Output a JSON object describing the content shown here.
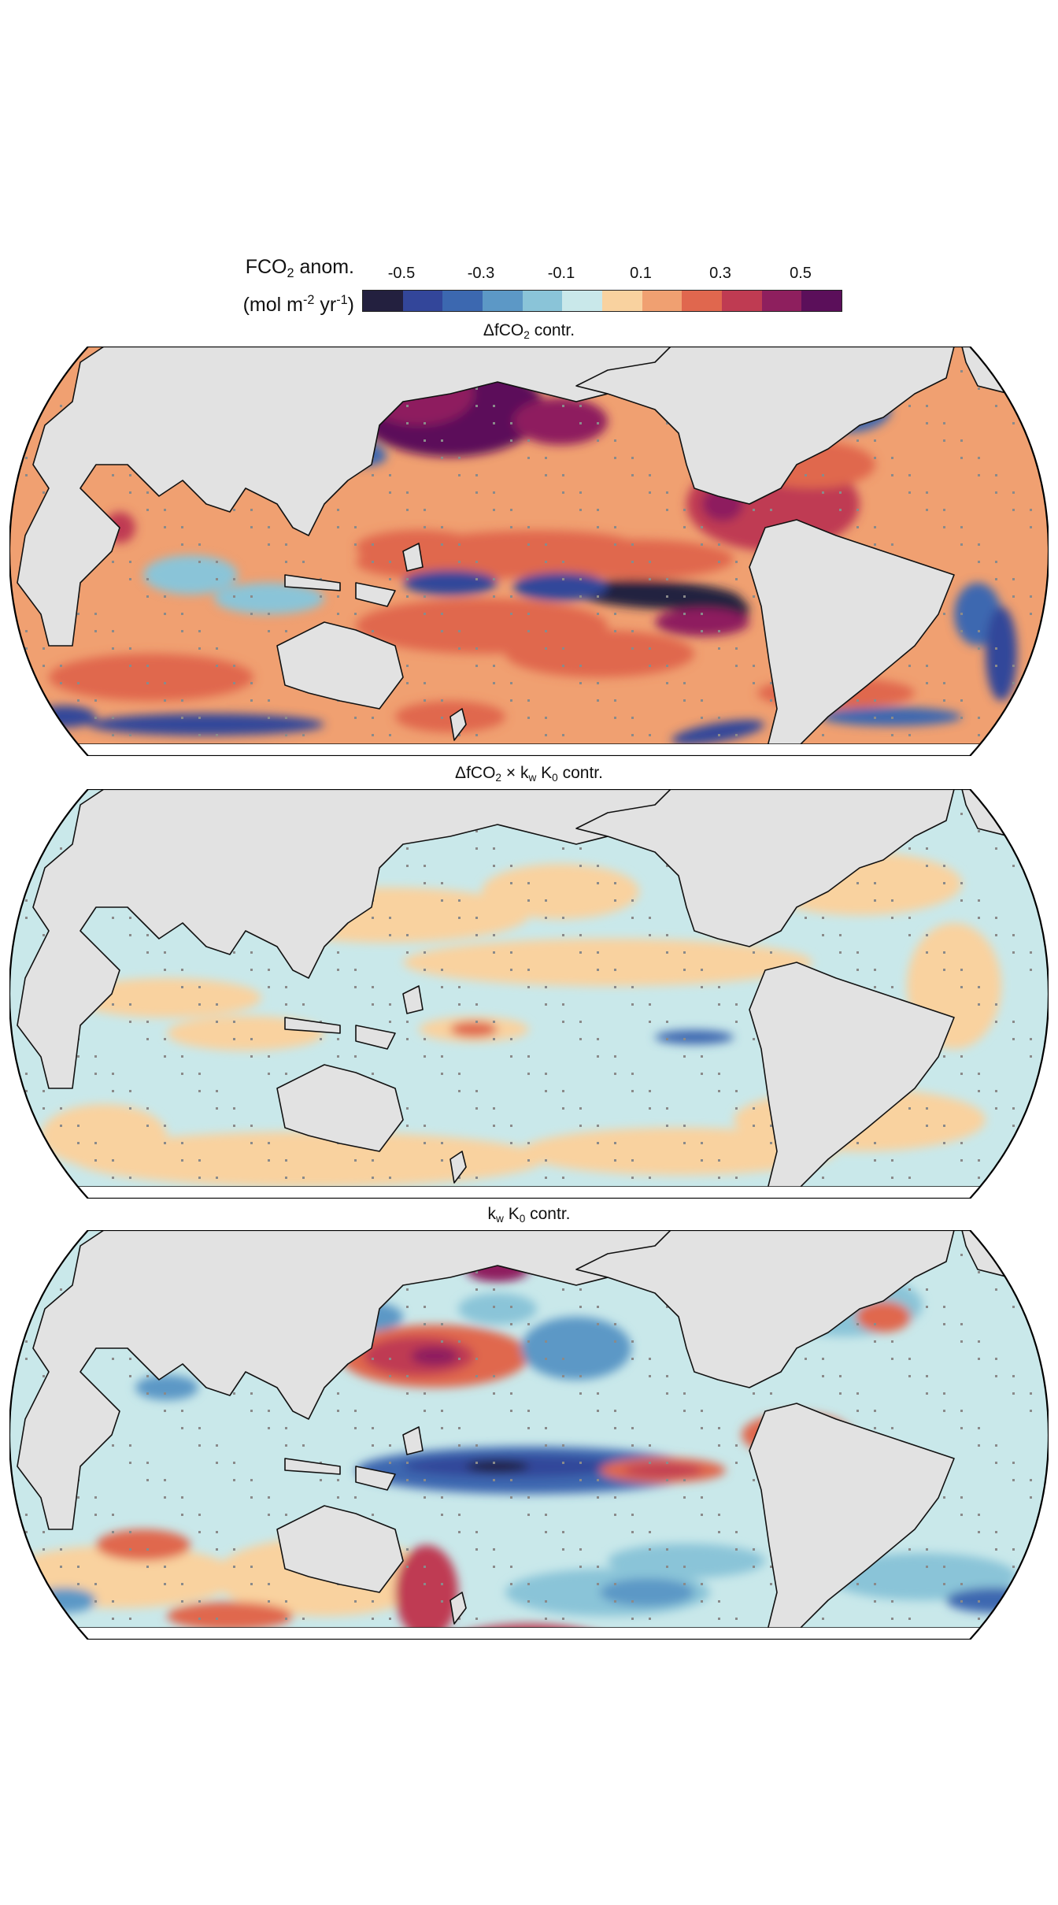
{
  "colorbar": {
    "title_line1_a": "FCO",
    "title_line1_sub": "2",
    "title_line1_b": " anom.",
    "title_line2_a": "(mol m",
    "title_line2_sup1": "-2",
    "title_line2_b": " yr",
    "title_line2_sup2": "-1",
    "title_line2_c": ")",
    "ticks": [
      "-0.5",
      "-0.3",
      "-0.1",
      "0.1",
      "0.3",
      "0.5"
    ],
    "colors": [
      "#23203f",
      "#33469a",
      "#3c68b0",
      "#5c98c6",
      "#8ac4d8",
      "#c9e8ea",
      "#f9d29f",
      "#f0a071",
      "#e0674e",
      "#bf3b52",
      "#8e1f5e",
      "#5b0f5a"
    ]
  },
  "panels": [
    {
      "title_a": "ΔfCO",
      "title_sub": "2",
      "title_b": " contr."
    },
    {
      "title_a": "ΔfCO",
      "title_sub": "2",
      "title_b": " × k",
      "title_sub2": "w",
      "title_c": " K",
      "title_sub3": "0",
      "title_d": " contr."
    },
    {
      "title_a": "k",
      "title_sub": "w",
      "title_b": " K",
      "title_sub2": "0",
      "title_c": " contr."
    }
  ],
  "map_style": {
    "land_color": "#e2e2e2",
    "coast_color": "#111111",
    "stipple_color": "#8a8a8a"
  }
}
